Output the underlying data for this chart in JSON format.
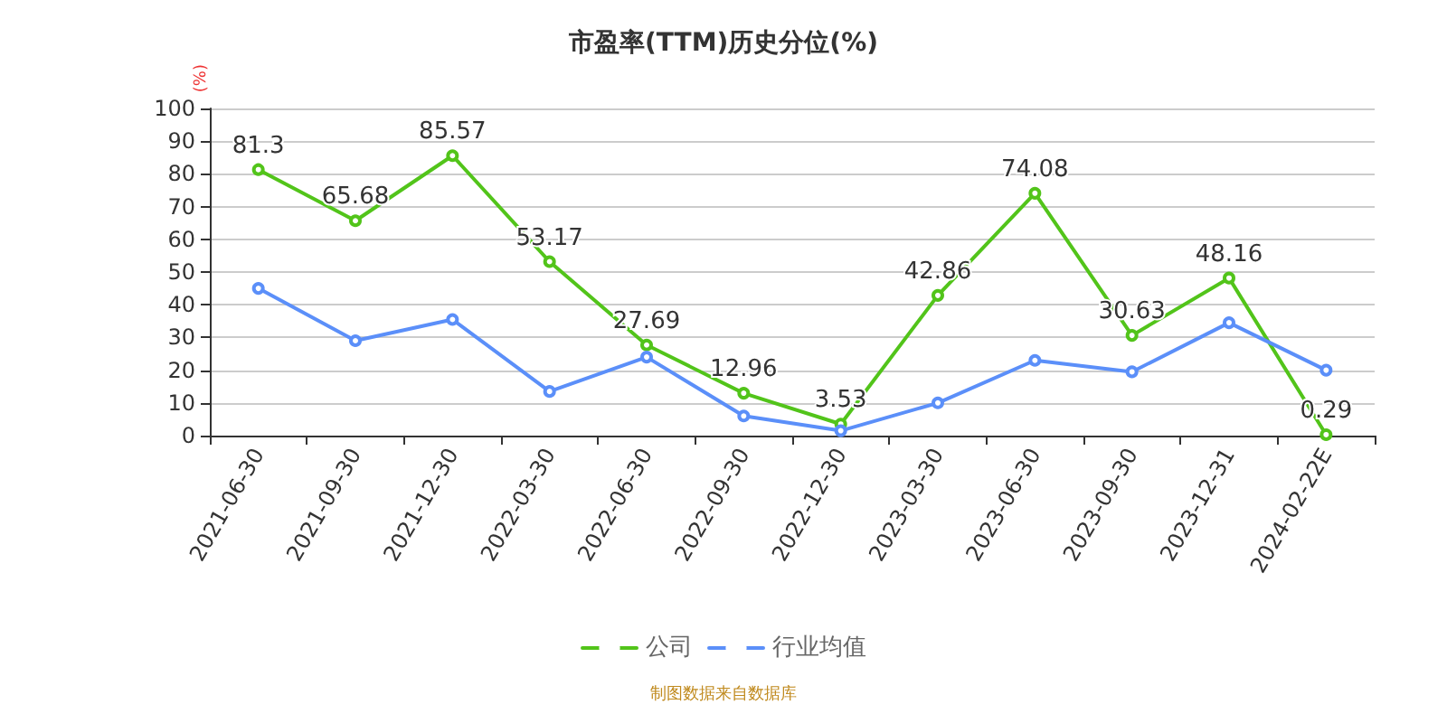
{
  "chart_data": {
    "type": "line",
    "title": "市盈率(TTM)历史分位(%)",
    "ylabel": "(%)",
    "categories": [
      "2021-06-30",
      "2021-09-30",
      "2021-12-30",
      "2022-03-30",
      "2022-06-30",
      "2022-09-30",
      "2022-12-30",
      "2023-03-30",
      "2023-06-30",
      "2023-09-30",
      "2023-12-31",
      "2024-02-22E"
    ],
    "series": [
      {
        "name": "公司",
        "color": "#52c41a",
        "values": [
          81.3,
          65.68,
          85.57,
          53.17,
          27.69,
          12.96,
          3.53,
          42.86,
          74.08,
          30.63,
          48.16,
          0.29
        ],
        "value_labels": [
          "81.3",
          "65.68",
          "85.57",
          "53.17",
          "27.69",
          "12.96",
          "3.53",
          "42.86",
          "74.08",
          "30.63",
          "48.16",
          "0.29"
        ]
      },
      {
        "name": "行业均值",
        "color": "#5b8ff9",
        "values": [
          45,
          29,
          35.5,
          13.5,
          24,
          6,
          1.5,
          10,
          23,
          19.5,
          34.5,
          20
        ]
      }
    ],
    "ylim": [
      0,
      100
    ],
    "yticks": [
      0,
      10,
      20,
      30,
      40,
      50,
      60,
      70,
      80,
      90,
      100
    ],
    "grid": "y",
    "legend": "bottom",
    "marker": "circle",
    "annotations": [
      "制图数据来自数据库"
    ]
  }
}
